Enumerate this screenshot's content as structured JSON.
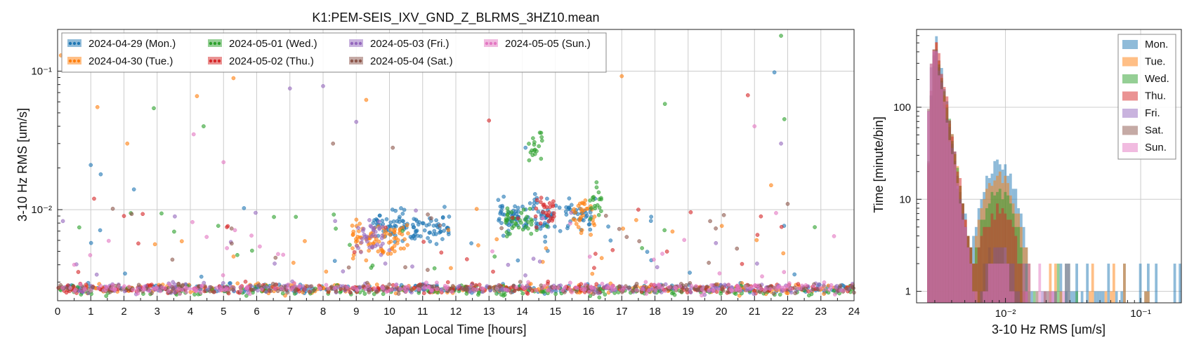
{
  "colors": {
    "Mon": "#1f77b4",
    "Tue": "#ff7f0e",
    "Wed": "#2ca02c",
    "Thu": "#d62728",
    "Fri": "#9467bd",
    "Sat": "#8c564b",
    "Sun": "#e377c2"
  },
  "chart_data": [
    {
      "type": "scatter",
      "title": "K1:PEM-SEIS_IXV_GND_Z_BLRMS_3HZ10.mean",
      "xlabel": "Japan Local Time [hours]",
      "ylabel": "3-10 Hz RMS [um/s]",
      "xlim": [
        0,
        24
      ],
      "ylim": [
        0.0022,
        0.2
      ],
      "yscale": "log",
      "grid": true,
      "legend_position": "top-left",
      "x_ticks": [
        0,
        1,
        2,
        3,
        4,
        5,
        6,
        7,
        8,
        9,
        10,
        11,
        12,
        13,
        14,
        15,
        16,
        17,
        18,
        19,
        20,
        21,
        22,
        23,
        24
      ],
      "x_tick_labels": [
        "0",
        "1",
        "2",
        "3",
        "4",
        "5",
        "6",
        "7",
        "8",
        "9",
        "10",
        "11",
        "12",
        "13",
        "14",
        "15",
        "16",
        "17",
        "18",
        "19",
        "20",
        "21",
        "22",
        "23",
        "24"
      ],
      "y_ticks": [
        0.01,
        0.1
      ],
      "y_tick_labels": [
        "10⁻²",
        "10⁻¹"
      ],
      "series": [
        {
          "name": "2024-04-29 (Mon.)",
          "key": "Mon",
          "baseline": 0.0027,
          "active_windows": [
            [
              9.5,
              11.8,
              0.0075
            ],
            [
              13.2,
              15.2,
              0.009
            ],
            [
              15.3,
              16.1,
              0.009
            ]
          ],
          "sample_outliers": [
            [
              1.0,
              0.021
            ],
            [
              1.3,
              0.018
            ],
            [
              2.3,
              0.014
            ],
            [
              14.1,
              0.028
            ],
            [
              21.6,
              0.098
            ],
            [
              16.2,
              0.012
            ]
          ]
        },
        {
          "name": "2024-04-30 (Tue.)",
          "key": "Tue",
          "baseline": 0.0027,
          "active_windows": [
            [
              8.8,
              10.6,
              0.006
            ],
            [
              15.5,
              16.2,
              0.009
            ]
          ],
          "sample_outliers": [
            [
              0.1,
              0.13
            ],
            [
              1.2,
              0.055
            ],
            [
              2.1,
              0.03
            ],
            [
              4.2,
              0.066
            ],
            [
              5.3,
              0.089
            ],
            [
              9.3,
              0.062
            ],
            [
              17.0,
              0.092
            ],
            [
              21.5,
              0.015
            ]
          ]
        },
        {
          "name": "2024-05-01 (Wed.)",
          "key": "Wed",
          "baseline": 0.0026,
          "active_windows": [
            [
              13.5,
              14.3,
              0.008
            ],
            [
              14.2,
              14.6,
              0.03
            ],
            [
              16.0,
              16.4,
              0.011
            ]
          ],
          "sample_outliers": [
            [
              2.9,
              0.054
            ],
            [
              4.4,
              0.04
            ],
            [
              18.3,
              0.058
            ],
            [
              21.8,
              0.18
            ],
            [
              21.9,
              0.045
            ]
          ]
        },
        {
          "name": "2024-05-02 (Thu.)",
          "key": "Thu",
          "baseline": 0.0027,
          "active_windows": [
            [
              14.4,
              15.0,
              0.01
            ]
          ],
          "sample_outliers": [
            [
              1.1,
              0.012
            ],
            [
              2.0,
              0.009
            ],
            [
              13.0,
              0.044
            ],
            [
              17.5,
              0.01
            ],
            [
              20.8,
              0.067
            ]
          ]
        },
        {
          "name": "2024-05-03 (Fri.)",
          "key": "Fri",
          "baseline": 0.0027,
          "active_windows": [
            [
              9.0,
              9.8,
              0.006
            ]
          ],
          "sample_outliers": [
            [
              7.0,
              0.075
            ],
            [
              8.0,
              0.078
            ],
            [
              9.0,
              0.043
            ],
            [
              21.8,
              0.03
            ]
          ]
        },
        {
          "name": "2024-05-04 (Sat.)",
          "key": "Sat",
          "baseline": 0.0027,
          "active_windows": [],
          "sample_outliers": [
            [
              8.3,
              0.03
            ],
            [
              10.1,
              0.028
            ],
            [
              22.0,
              0.011
            ]
          ]
        },
        {
          "name": "2024-05-05 (Sun.)",
          "key": "Sun",
          "baseline": 0.0027,
          "active_windows": [],
          "sample_outliers": [
            [
              0.5,
              0.004
            ],
            [
              4.1,
              0.035
            ],
            [
              5.0,
              0.022
            ],
            [
              13.1,
              0.005
            ],
            [
              21.0,
              0.04
            ]
          ]
        }
      ]
    },
    {
      "type": "histogram",
      "xlabel": "3-10 Hz RMS [um/s]",
      "ylabel": "Time [minute/bin]",
      "xscale": "log",
      "yscale": "log",
      "xlim": [
        0.0022,
        0.2
      ],
      "ylim": [
        0.75,
        700
      ],
      "grid": true,
      "legend_position": "top-right",
      "x_ticks": [
        0.01,
        0.1
      ],
      "x_tick_labels": [
        "10⁻²",
        "10⁻¹"
      ],
      "y_ticks": [
        1,
        10,
        100
      ],
      "y_tick_labels": [
        "1",
        "10",
        "100"
      ],
      "series": [
        {
          "name": "Mon.",
          "key": "Mon",
          "peak_x": 0.0031,
          "peak": 520,
          "secondary_peak": 25,
          "tail_end": 0.2
        },
        {
          "name": "Tue.",
          "key": "Tue",
          "peak_x": 0.0031,
          "peak": 500,
          "secondary_peak": 18,
          "tail_end": 0.12
        },
        {
          "name": "Wed.",
          "key": "Wed",
          "peak_x": 0.0031,
          "peak": 480,
          "secondary_peak": 12,
          "tail_end": 0.04
        },
        {
          "name": "Thu.",
          "key": "Thu",
          "peak_x": 0.0031,
          "peak": 560,
          "secondary_peak": 8,
          "tail_end": 0.015
        },
        {
          "name": "Fri.",
          "key": "Fri",
          "peak_x": 0.003,
          "peak": 470,
          "secondary_peak": 3,
          "tail_end": 0.03
        },
        {
          "name": "Sat.",
          "key": "Sat",
          "peak_x": 0.003,
          "peak": 520,
          "secondary_peak": 3,
          "tail_end": 0.02
        },
        {
          "name": "Sun.",
          "key": "Sun",
          "peak_x": 0.003,
          "peak": 490,
          "secondary_peak": 2,
          "tail_end": 0.03
        }
      ]
    }
  ]
}
